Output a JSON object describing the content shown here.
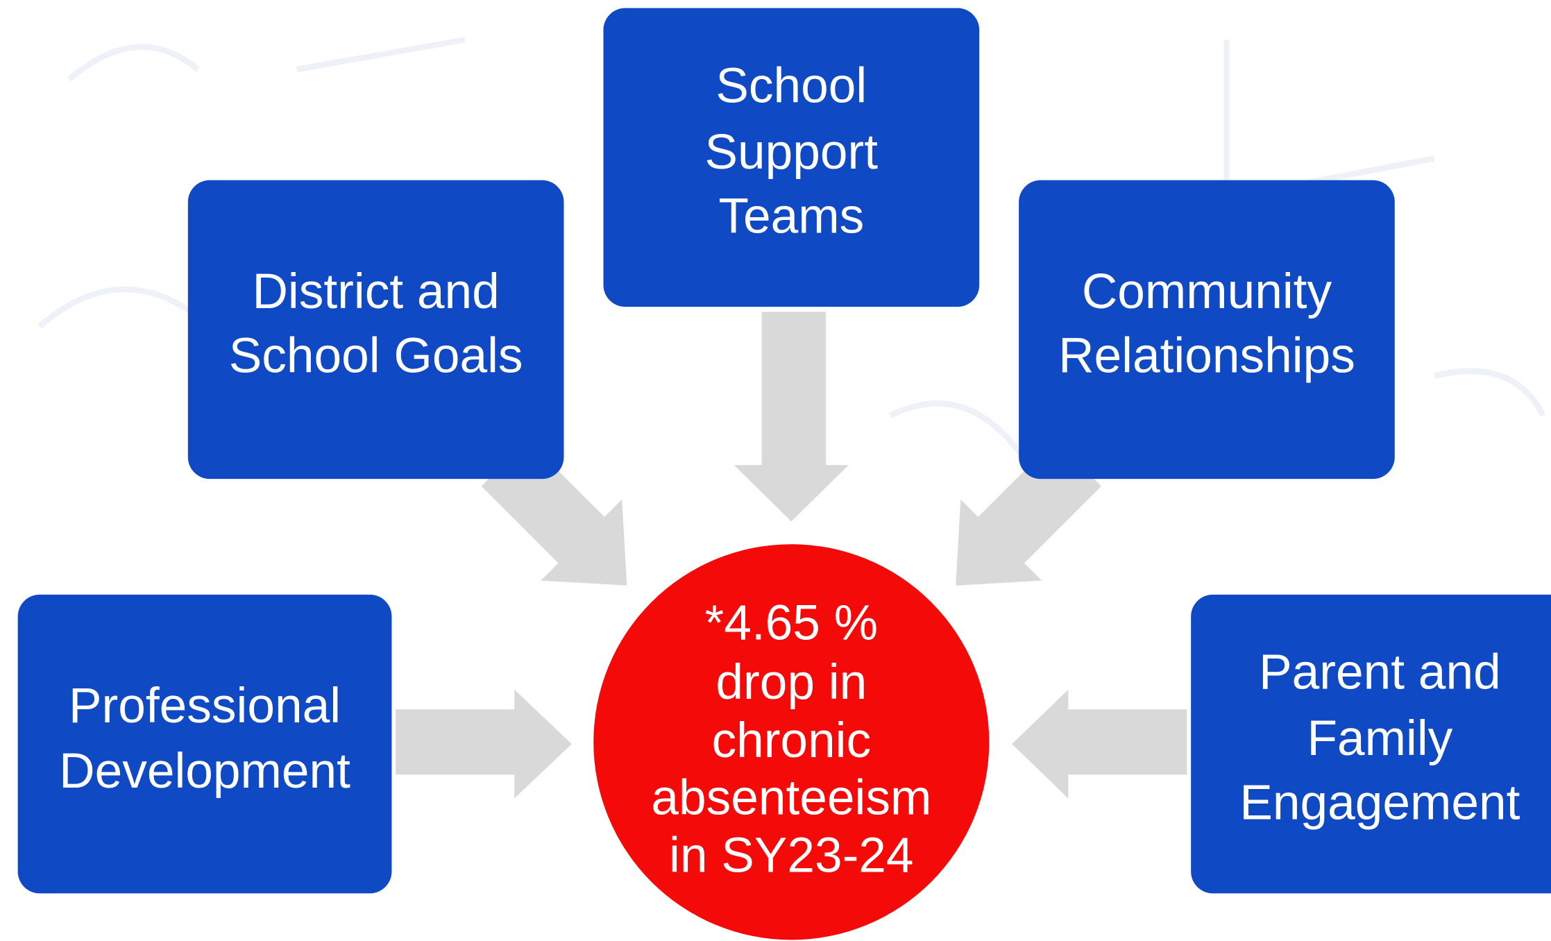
{
  "nodes": [
    {
      "lines": [
        "School",
        "Support",
        "Teams"
      ]
    },
    {
      "lines": [
        "District and",
        "School Goals"
      ]
    },
    {
      "lines": [
        "Community",
        "Relationships"
      ]
    },
    {
      "lines": [
        "Professional",
        "Development"
      ]
    },
    {
      "lines": [
        "Parent and",
        "Family",
        "Engagement"
      ]
    }
  ],
  "center": {
    "lines": [
      "*4.65 %",
      "drop in",
      "chronic",
      "absenteeism",
      "in SY23-24"
    ]
  }
}
